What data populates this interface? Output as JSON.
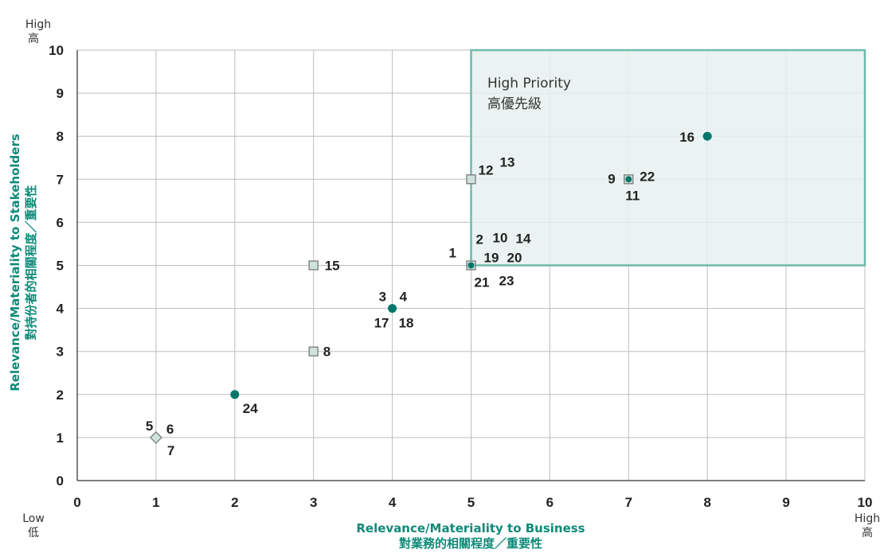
{
  "chart_data": {
    "type": "scatter",
    "xlim": [
      0,
      10
    ],
    "ylim": [
      0,
      10
    ],
    "x_ticks": [
      0,
      1,
      2,
      3,
      4,
      5,
      6,
      7,
      8,
      9,
      10
    ],
    "y_ticks": [
      0,
      1,
      2,
      3,
      4,
      5,
      6,
      7,
      8,
      9,
      10
    ],
    "grid": true,
    "xlabel": "Relevance/Materiality to Business",
    "xlabel_zh": "對業務的相關程度／重要性",
    "ylabel": "Relevance/Materiality to Stakeholders",
    "ylabel_zh": "對持份者的相關程度／重要性",
    "corner_labels": {
      "y_high": "High",
      "y_high_zh": "高",
      "x_low": "Low",
      "x_low_zh": "低",
      "x_high": "High",
      "x_high_zh": "高"
    },
    "region": {
      "label": "High Priority",
      "label_zh": "高優先級",
      "x_range": [
        5,
        10
      ],
      "y_range": [
        5,
        10
      ]
    },
    "points": [
      {
        "x": 8,
        "y": 8,
        "marker": "circle",
        "labels": [
          "16"
        ]
      },
      {
        "x": 7,
        "y": 7,
        "marker": "square-dot",
        "labels": [
          "9",
          "22",
          "11"
        ]
      },
      {
        "x": 5,
        "y": 7,
        "marker": "square",
        "labels": [
          "12",
          "13"
        ]
      },
      {
        "x": 5,
        "y": 5,
        "marker": "square-dot",
        "labels": [
          "1",
          "2",
          "10",
          "14",
          "19",
          "20",
          "21",
          "23"
        ]
      },
      {
        "x": 3,
        "y": 5,
        "marker": "square",
        "labels": [
          "15"
        ]
      },
      {
        "x": 4,
        "y": 4,
        "marker": "circle",
        "labels": [
          "3",
          "4",
          "17",
          "18"
        ]
      },
      {
        "x": 3,
        "y": 3,
        "marker": "square",
        "labels": [
          "8"
        ]
      },
      {
        "x": 2,
        "y": 2,
        "marker": "circle",
        "labels": [
          "24"
        ]
      },
      {
        "x": 1,
        "y": 1,
        "marker": "diamond",
        "labels": [
          "5",
          "6",
          "7"
        ]
      }
    ],
    "colors": {
      "circle": "#00776a",
      "square_fill": "#cfe3de",
      "square_stroke": "#7a7a7a",
      "region_fill": "#e6f1ee",
      "region_stroke": "#6fb9ad",
      "axis_title": "#0e8a78"
    }
  }
}
